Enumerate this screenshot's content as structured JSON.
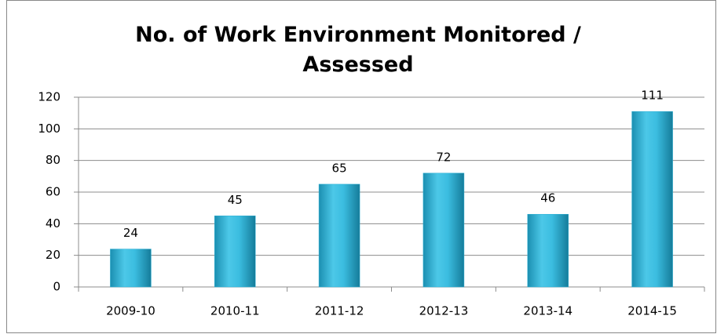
{
  "chart_data": {
    "type": "bar",
    "title": "No. of Work Environment Monitored / Assessed",
    "categories": [
      "2009-10",
      "2010-11",
      "2011-12",
      "2012-13",
      "2013-14",
      "2014-15"
    ],
    "values": [
      24,
      45,
      65,
      72,
      46,
      111
    ],
    "color": "#2fb0d4",
    "ylim": [
      0,
      120
    ],
    "yticks": [
      0,
      20,
      40,
      60,
      80,
      100,
      120
    ],
    "grid": true
  }
}
